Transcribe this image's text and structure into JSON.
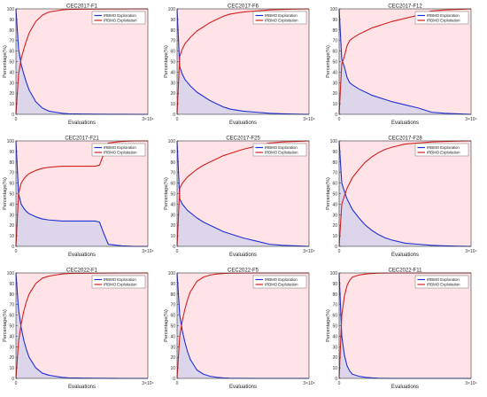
{
  "figure": {
    "colors": {
      "exploration": "#1f2fd6",
      "exploitation": "#d41f1f",
      "exploration_fill": "#ddd6ea",
      "exploitation_fill": "#ffe3e6",
      "axis": "#333333"
    }
  },
  "chart_data": [
    {
      "type": "area",
      "title": "CEC2017-F1",
      "xlabel": "Evaluations",
      "ylabel": "Percentage(%)",
      "x_tick_labels": [
        "0",
        "3×10⁴"
      ],
      "y_ticks": [
        0,
        10,
        20,
        30,
        40,
        50,
        60,
        70,
        80,
        90,
        100
      ],
      "xlim": [
        0,
        30000
      ],
      "ylim": [
        0,
        100
      ],
      "legend": "top-right",
      "x": [
        0,
        600,
        1200,
        1800,
        2400,
        3000,
        4500,
        6000,
        7500,
        9000,
        10500,
        12000,
        15000,
        18000,
        21000,
        24000,
        27000,
        30000
      ],
      "series": [
        {
          "name": "IRBMO Exploration",
          "values": [
            100,
            62,
            47,
            38,
            30,
            23,
            12,
            6,
            3,
            2,
            1,
            0.5,
            0.3,
            0.2,
            0.1,
            0.1,
            0,
            0
          ]
        },
        {
          "name": "IRBMO Exploitation",
          "values": [
            0,
            38,
            53,
            62,
            70,
            77,
            88,
            94,
            97,
            98,
            99,
            99.5,
            99.7,
            99.8,
            99.9,
            99.9,
            100,
            100
          ]
        }
      ]
    },
    {
      "type": "area",
      "title": "CEC2017-F6",
      "xlabel": "Evaluations",
      "ylabel": "Percentage(%)",
      "x_tick_labels": [
        "0",
        "3×10⁴"
      ],
      "y_ticks": [
        0,
        10,
        20,
        30,
        40,
        50,
        60,
        70,
        80,
        90,
        100
      ],
      "xlim": [
        0,
        30000
      ],
      "ylim": [
        0,
        100
      ],
      "legend": "top-right",
      "x": [
        0,
        600,
        1200,
        1800,
        2400,
        3000,
        4500,
        6000,
        7500,
        9000,
        10500,
        12000,
        15000,
        18000,
        21000,
        24000,
        27000,
        30000
      ],
      "series": [
        {
          "name": "IRBMO Exploration",
          "values": [
            100,
            45,
            38,
            33,
            30,
            27,
            21,
            17,
            13,
            10,
            7,
            5,
            3,
            2,
            1,
            0.5,
            0.2,
            0
          ]
        },
        {
          "name": "IRBMO Exploitation",
          "values": [
            0,
            55,
            62,
            67,
            70,
            73,
            79,
            83,
            87,
            90,
            93,
            95,
            97,
            98,
            99,
            99.5,
            99.8,
            100
          ]
        }
      ]
    },
    {
      "type": "area",
      "title": "CEC2017-F12",
      "xlabel": "Evaluations",
      "ylabel": "Percentage(%)",
      "x_tick_labels": [
        "0",
        "3×10⁴"
      ],
      "y_ticks": [
        0,
        10,
        20,
        30,
        40,
        50,
        60,
        70,
        80,
        90,
        100
      ],
      "xlim": [
        0,
        30000
      ],
      "ylim": [
        0,
        100
      ],
      "legend": "top-right",
      "x": [
        0,
        600,
        1200,
        1800,
        2400,
        3000,
        4500,
        6000,
        7500,
        9000,
        10500,
        12000,
        15000,
        18000,
        21000,
        24000,
        27000,
        30000
      ],
      "series": [
        {
          "name": "IRBMO Exploration",
          "values": [
            100,
            52,
            45,
            35,
            30,
            28,
            24,
            21,
            18,
            16,
            14,
            12,
            9,
            6,
            2,
            1,
            0.5,
            0
          ]
        },
        {
          "name": "IRBMO Exploitation",
          "values": [
            0,
            48,
            55,
            65,
            70,
            72,
            76,
            79,
            82,
            84,
            86,
            88,
            91,
            94,
            98,
            99,
            99.5,
            100
          ]
        }
      ]
    },
    {
      "type": "area",
      "title": "CEC2017-F21",
      "xlabel": "Evaluations",
      "ylabel": "Percentage(%)",
      "x_tick_labels": [
        "0",
        "3×10⁴"
      ],
      "y_ticks": [
        0,
        10,
        20,
        30,
        40,
        50,
        60,
        70,
        80,
        90,
        100
      ],
      "xlim": [
        0,
        30000
      ],
      "ylim": [
        0,
        100
      ],
      "legend": "top-right",
      "x": [
        0,
        600,
        1200,
        1800,
        2400,
        3000,
        4500,
        6000,
        7500,
        9000,
        10500,
        12000,
        15000,
        18000,
        19000,
        20000,
        21000,
        24000,
        27000,
        30000
      ],
      "series": [
        {
          "name": "IRBMO Exploration",
          "values": [
            100,
            50,
            40,
            36,
            33,
            31,
            28,
            26,
            25,
            24.5,
            24,
            24,
            24,
            24,
            23,
            12,
            2,
            0.5,
            0,
            0
          ]
        },
        {
          "name": "IRBMO Exploitation",
          "values": [
            0,
            50,
            60,
            64,
            67,
            69,
            72,
            74,
            75,
            75.5,
            76,
            76,
            76,
            76,
            77,
            88,
            98,
            99.5,
            100,
            100
          ]
        }
      ]
    },
    {
      "type": "area",
      "title": "CEC2017-F25",
      "xlabel": "Evaluations",
      "ylabel": "Percentage(%)",
      "x_tick_labels": [
        "0",
        "3×10⁴"
      ],
      "y_ticks": [
        0,
        10,
        20,
        30,
        40,
        50,
        60,
        70,
        80,
        90,
        100
      ],
      "xlim": [
        0,
        30000
      ],
      "ylim": [
        0,
        100
      ],
      "legend": "top-right",
      "x": [
        0,
        600,
        1200,
        1800,
        2400,
        3000,
        4500,
        6000,
        7500,
        9000,
        10500,
        12000,
        15000,
        18000,
        21000,
        24000,
        27000,
        30000
      ],
      "series": [
        {
          "name": "IRBMO Exploration",
          "values": [
            100,
            45,
            40,
            37,
            34,
            32,
            27,
            23,
            20,
            17,
            14,
            12,
            8,
            5,
            2,
            1,
            0.5,
            0
          ]
        },
        {
          "name": "IRBMO Exploitation",
          "values": [
            0,
            55,
            60,
            63,
            66,
            68,
            73,
            77,
            80,
            83,
            86,
            88,
            92,
            95,
            98,
            99,
            99.5,
            100
          ]
        }
      ]
    },
    {
      "type": "area",
      "title": "CEC2017-F28",
      "xlabel": "Evaluations",
      "ylabel": "Percentage(%)",
      "x_tick_labels": [
        "0",
        "3×10⁴"
      ],
      "y_ticks": [
        0,
        10,
        20,
        30,
        40,
        50,
        60,
        70,
        80,
        90,
        100
      ],
      "xlim": [
        0,
        30000
      ],
      "ylim": [
        0,
        100
      ],
      "legend": "top-right",
      "x": [
        0,
        600,
        1200,
        1800,
        2400,
        3000,
        4500,
        6000,
        7500,
        9000,
        10500,
        12000,
        15000,
        18000,
        21000,
        24000,
        27000,
        30000
      ],
      "series": [
        {
          "name": "IRBMO Exploration",
          "values": [
            100,
            60,
            52,
            45,
            40,
            35,
            27,
            20,
            15,
            11,
            8,
            6,
            3,
            2,
            1,
            0.5,
            0.2,
            0
          ]
        },
        {
          "name": "IRBMO Exploitation",
          "values": [
            0,
            40,
            48,
            55,
            60,
            65,
            73,
            80,
            85,
            89,
            92,
            94,
            97,
            98,
            99,
            99.5,
            99.8,
            100
          ]
        }
      ]
    },
    {
      "type": "area",
      "title": "CEC2022-F1",
      "xlabel": "Evaluations",
      "ylabel": "Percentage(%)",
      "x_tick_labels": [
        "0",
        "3×10⁴"
      ],
      "y_ticks": [
        0,
        10,
        20,
        30,
        40,
        50,
        60,
        70,
        80,
        90,
        100
      ],
      "xlim": [
        0,
        30000
      ],
      "ylim": [
        0,
        100
      ],
      "legend": "top-right",
      "x": [
        0,
        600,
        1200,
        1800,
        2400,
        3000,
        4500,
        6000,
        7500,
        9000,
        10500,
        12000,
        15000,
        18000,
        21000,
        24000,
        27000,
        30000
      ],
      "series": [
        {
          "name": "IRBMO Exploration",
          "values": [
            100,
            65,
            48,
            36,
            27,
            20,
            10,
            5,
            3,
            2,
            1,
            0.5,
            0.3,
            0.2,
            0.1,
            0,
            0,
            0
          ]
        },
        {
          "name": "IRBMO Exploitation",
          "values": [
            0,
            35,
            52,
            64,
            73,
            80,
            90,
            95,
            97,
            98,
            99,
            99.5,
            99.7,
            99.8,
            99.9,
            100,
            100,
            100
          ]
        }
      ]
    },
    {
      "type": "area",
      "title": "CEC2022-F5",
      "xlabel": "Evaluations",
      "ylabel": "Percentage(%)",
      "x_tick_labels": [
        "0",
        "3×10⁴"
      ],
      "y_ticks": [
        0,
        10,
        20,
        30,
        40,
        50,
        60,
        70,
        80,
        90,
        100
      ],
      "xlim": [
        0,
        30000
      ],
      "ylim": [
        0,
        100
      ],
      "legend": "top-right",
      "x": [
        0,
        600,
        1200,
        1800,
        2400,
        3000,
        4500,
        6000,
        7500,
        9000,
        10500,
        12000,
        15000,
        18000,
        21000,
        24000,
        27000,
        30000
      ],
      "series": [
        {
          "name": "IRBMO Exploration",
          "values": [
            100,
            60,
            45,
            34,
            25,
            18,
            8,
            4,
            2,
            1,
            0.5,
            0.2,
            0.1,
            0,
            0,
            0,
            0,
            0
          ]
        },
        {
          "name": "IRBMO Exploitation",
          "values": [
            0,
            40,
            55,
            66,
            75,
            82,
            92,
            96,
            98,
            99,
            99.5,
            99.8,
            99.9,
            100,
            100,
            100,
            100,
            100
          ]
        }
      ]
    },
    {
      "type": "area",
      "title": "CEC2022-F11",
      "xlabel": "Evaluations",
      "ylabel": "Percentage(%)",
      "x_tick_labels": [
        "0",
        "3×10⁴"
      ],
      "y_ticks": [
        0,
        10,
        20,
        30,
        40,
        50,
        60,
        70,
        80,
        90,
        100
      ],
      "xlim": [
        0,
        30000
      ],
      "ylim": [
        0,
        100
      ],
      "legend": "top-right",
      "x": [
        0,
        600,
        1200,
        1800,
        2400,
        3000,
        4500,
        6000,
        7500,
        9000,
        10500,
        12000,
        15000,
        18000,
        21000,
        24000,
        27000,
        30000
      ],
      "series": [
        {
          "name": "IRBMO Exploration",
          "values": [
            100,
            40,
            22,
            12,
            7,
            4,
            2,
            1,
            0.5,
            0.2,
            0.1,
            0,
            0,
            0,
            0,
            0,
            0,
            0
          ]
        },
        {
          "name": "IRBMO Exploitation",
          "values": [
            0,
            60,
            78,
            88,
            93,
            96,
            98,
            99,
            99.5,
            99.8,
            99.9,
            100,
            100,
            100,
            100,
            100,
            100,
            100
          ]
        }
      ]
    }
  ]
}
